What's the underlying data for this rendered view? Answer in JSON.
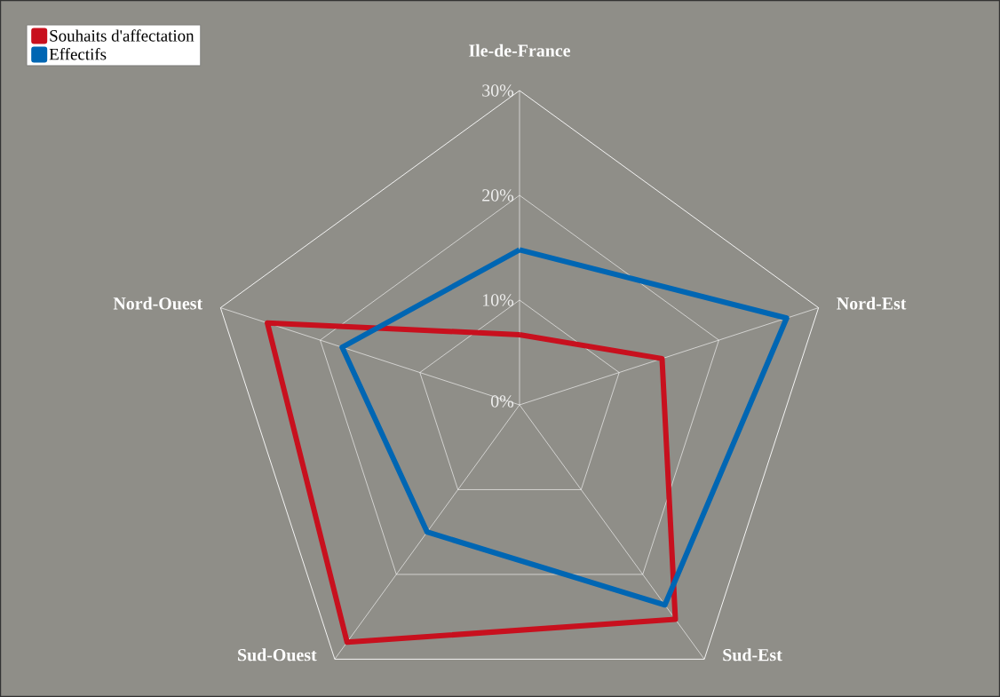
{
  "chart_data": {
    "type": "radar",
    "categories": [
      "Ile-de-France",
      "Nord-Est",
      "Sud-Est",
      "Sud-Ouest",
      "Nord-Ouest"
    ],
    "series": [
      {
        "name": "Souhaits d'affectation",
        "color": "#c8101e",
        "values": [
          6.7,
          14.3,
          25.3,
          28,
          25.3
        ]
      },
      {
        "name": "Effectifs",
        "color": "#0066b3",
        "values": [
          14.8,
          26.8,
          23.6,
          15,
          17.8
        ]
      }
    ],
    "ylim": [
      0,
      30
    ],
    "yticks": [
      {
        "value": 0,
        "label": "0%"
      },
      {
        "value": 10,
        "label": "10%"
      },
      {
        "value": 20,
        "label": "20%"
      },
      {
        "value": 30,
        "label": "30%"
      }
    ],
    "grid": true,
    "legend": "top left"
  }
}
